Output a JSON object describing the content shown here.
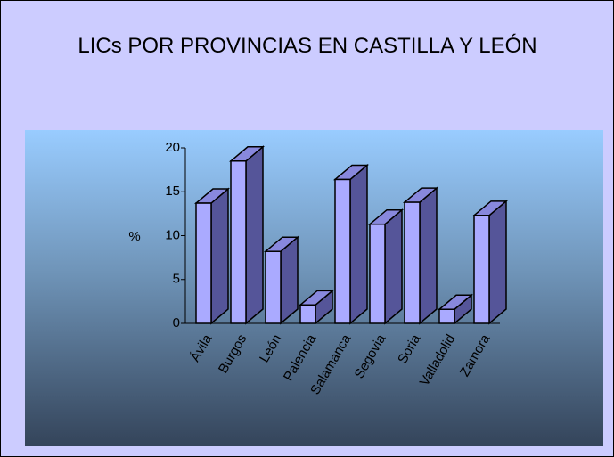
{
  "chart_data": {
    "type": "bar3d",
    "title": "LICs POR PROVINCIAS EN CASTILLA Y LEÓN",
    "y_label": "%",
    "categories": [
      "Ávila",
      "Burgos",
      "León",
      "Palencia",
      "Salamanca",
      "Segovia",
      "Soria",
      "Valladolid",
      "Zamora"
    ],
    "values": [
      13.7,
      18.5,
      8.2,
      2.1,
      16.4,
      11.3,
      13.8,
      1.6,
      12.3
    ],
    "color": "#aaaaff",
    "ylim": [
      0,
      20
    ],
    "yticks": [
      0,
      5,
      10,
      15,
      20
    ]
  }
}
